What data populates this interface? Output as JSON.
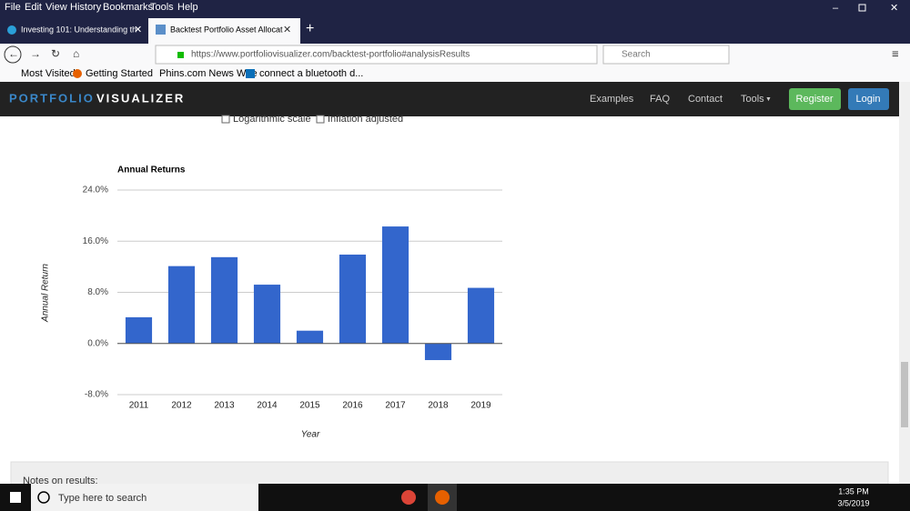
{
  "menu": [
    "File",
    "Edit",
    "View",
    "History",
    "Bookmarks",
    "Tools",
    "Help"
  ],
  "tabs": [
    "Investing 101: Understanding th",
    "Backtest Portfolio Asset Allocat"
  ],
  "url": "https://www.portfoliovisualizer.com/backtest-portfolio#analysisResults",
  "search_placeholder": "Search",
  "bookmarks": [
    "Most Visited",
    "Getting Started",
    "Phins.com News Wire",
    "connect a bluetooth d..."
  ],
  "navbar": {
    "brand": [
      "PORTFOLIO",
      "VISUALIZER"
    ],
    "links": [
      "Examples",
      "FAQ",
      "Contact",
      "Tools"
    ],
    "buttons": [
      "Register",
      "Login"
    ]
  },
  "options": [
    "Logarithmic scale",
    "Inflation adjusted"
  ],
  "chart_data": {
    "type": "bar",
    "title": "Annual Returns",
    "y_label": "Annual Return",
    "x_label": "Year",
    "categories": [
      "2011",
      "2012",
      "2013",
      "2014",
      "2015",
      "2016",
      "2017",
      "2018",
      "2019"
    ],
    "values": [
      4.1,
      12.1,
      13.5,
      9.2,
      2.0,
      13.9,
      18.3,
      -2.6,
      8.7
    ],
    "color": "#3366cc",
    "ylim": [
      -8,
      24
    ],
    "yticks": [
      {
        "value": -8,
        "label": "-8.0%"
      },
      {
        "value": 0,
        "label": "0.0%"
      },
      {
        "value": 8,
        "label": "8.0%"
      },
      {
        "value": 16,
        "label": "16.0%"
      },
      {
        "value": 24,
        "label": "24.0%"
      }
    ],
    "grid": true
  },
  "notes_title": "Notes on results:",
  "taskbar": {
    "search": "Type here to search",
    "time": "1:35 PM",
    "date": "3/5/2019"
  }
}
